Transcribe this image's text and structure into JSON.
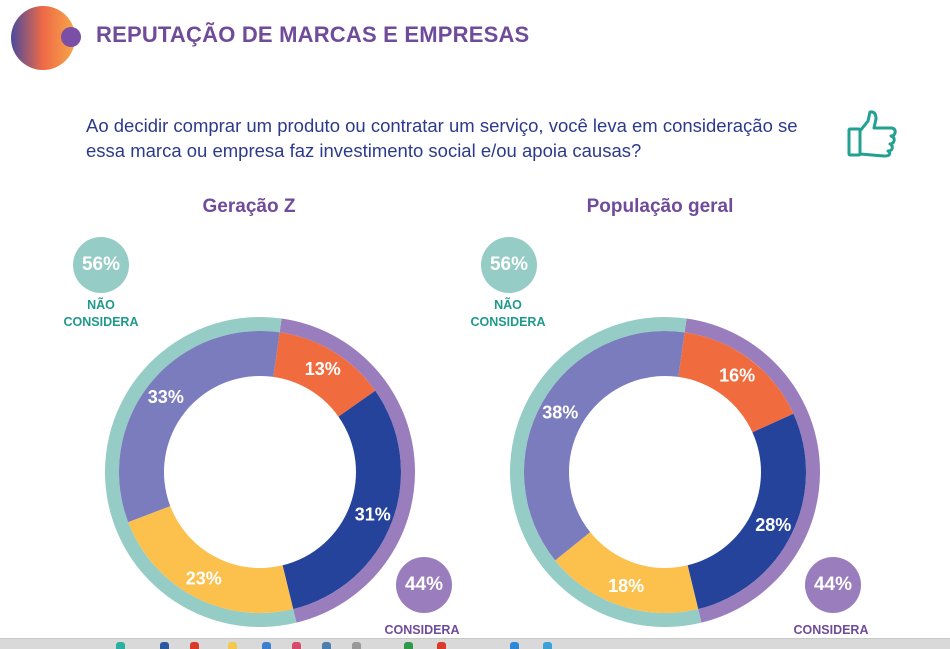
{
  "header": {
    "title": "REPUTAÇÃO DE MARCAS E EMPRESAS",
    "logo_icon": "orange-purple-gradient-circle-logo"
  },
  "question": {
    "text": "Ao decidir comprar um produto ou contratar um serviço, você leva em consideração se essa marca ou empresa faz investimento social e/ou apoia causas?",
    "icon": "thumbs-up-icon"
  },
  "colors": {
    "teal": "#96ccc6",
    "purple_ring": "#9a7dbd",
    "orange": "#f06c3f",
    "dark_blue": "#26439b",
    "yellow": "#fcc04d",
    "lavender": "#7a7cbd",
    "title_purple": "#6f4b9a",
    "text_blue": "#2c3a8c"
  },
  "chart_data": [
    {
      "type": "pie",
      "title": "Geração Z",
      "outer_ring": [
        {
          "name": "NÃO CONSIDERA",
          "value": 56,
          "label": "56%",
          "color": "#96ccc6"
        },
        {
          "name": "CONSIDERA",
          "value": 44,
          "label": "44%",
          "color": "#9a7dbd"
        }
      ],
      "inner_ring": [
        {
          "value": 13,
          "label": "13%",
          "color": "#f06c3f",
          "group": "CONSIDERA"
        },
        {
          "value": 31,
          "label": "31%",
          "color": "#26439b",
          "group": "CONSIDERA"
        },
        {
          "value": 23,
          "label": "23%",
          "color": "#fcc04d",
          "group": "NÃO CONSIDERA"
        },
        {
          "value": 33,
          "label": "33%",
          "color": "#7a7cbd",
          "group": "NÃO CONSIDERA"
        }
      ]
    },
    {
      "type": "pie",
      "title": "População geral",
      "outer_ring": [
        {
          "name": "NÃO CONSIDERA",
          "value": 56,
          "label": "56%",
          "color": "#96ccc6"
        },
        {
          "name": "CONSIDERA",
          "value": 44,
          "label": "44%",
          "color": "#9a7dbd"
        }
      ],
      "inner_ring": [
        {
          "value": 16,
          "label": "16%",
          "color": "#f06c3f",
          "group": "CONSIDERA"
        },
        {
          "value": 28,
          "label": "28%",
          "color": "#26439b",
          "group": "CONSIDERA"
        },
        {
          "value": 18,
          "label": "18%",
          "color": "#fcc04d",
          "group": "NÃO CONSIDERA"
        },
        {
          "value": 38,
          "label": "38%",
          "color": "#7a7cbd",
          "group": "NÃO CONSIDERA"
        }
      ]
    }
  ],
  "labels": {
    "nao_considera_line1": "NÃO",
    "nao_considera_line2": "CONSIDERA",
    "considera": "CONSIDERA"
  }
}
